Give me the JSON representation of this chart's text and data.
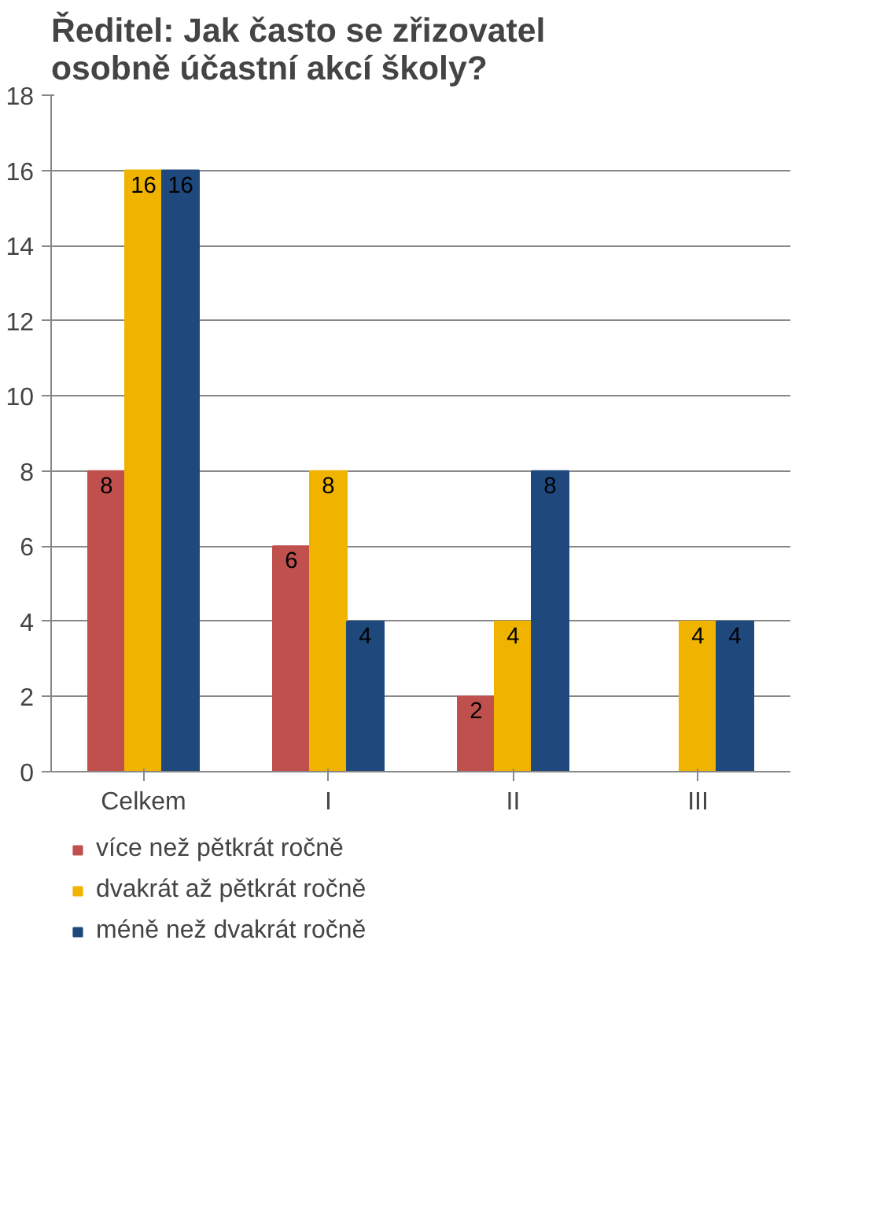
{
  "chart_data": {
    "type": "bar",
    "title": "Ředitel: Jak často se zřizovatel osobně účastní akcí školy?",
    "categories": [
      "Celkem",
      "I",
      "II",
      "III"
    ],
    "series": [
      {
        "name": "více než pětkrát ročně",
        "color": "#c0504d",
        "values": [
          8,
          6,
          2,
          0
        ],
        "value_labels": [
          "8",
          "6",
          "2",
          null
        ]
      },
      {
        "name": "dvakrát až pětkrát ročně",
        "color": "#f0b400",
        "values": [
          16,
          8,
          4,
          4
        ],
        "value_labels": [
          "16",
          "8",
          "4",
          "4"
        ]
      },
      {
        "name": "méně než dvakrát ročně",
        "color": "#1f497d",
        "values": [
          16,
          4,
          8,
          4
        ],
        "value_labels": [
          "16",
          "4",
          "8",
          "4"
        ]
      }
    ],
    "ylim": [
      0,
      18
    ],
    "yticks": [
      0,
      2,
      4,
      6,
      8,
      10,
      12,
      14,
      16,
      18
    ],
    "grid": "y",
    "legend": "bottom"
  }
}
